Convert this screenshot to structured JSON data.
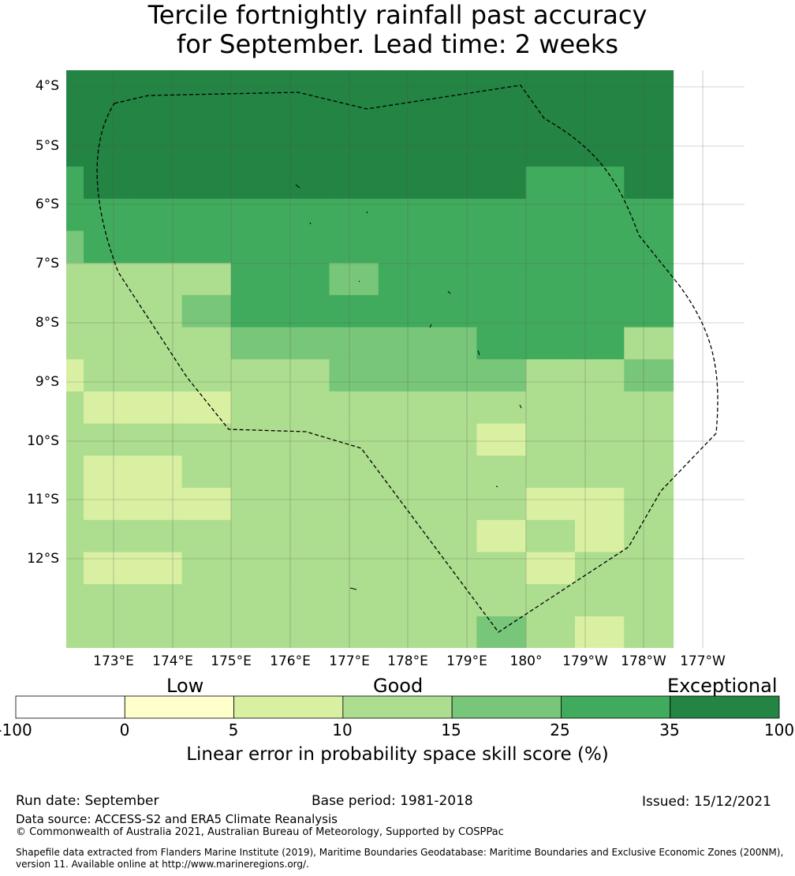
{
  "title_line1": "Tercile fortnightly rainfall past accuracy",
  "title_line2": "for September. Lead time: 2 weeks",
  "map": {
    "lat_labels": [
      "4°S",
      "5°S",
      "6°S",
      "7°S",
      "8°S",
      "9°S",
      "10°S",
      "11°S",
      "12°S"
    ],
    "lon_labels": [
      "173°E",
      "174°E",
      "175°E",
      "176°E",
      "177°E",
      "178°E",
      "179°E",
      "180°",
      "179°W",
      "178°W",
      "177°W"
    ],
    "region_outline": "maritime boundary (dashed)",
    "grid_rows": [
      "6666666666666",
      "6666666666666",
      "6666666666666",
      "5666666666556",
      "5555555555555",
      "4555555555555",
      "3333554555555",
      "3334555555555",
      "3333444445553",
      "2333334444334",
      "3222333333333",
      "3333333332333",
      "3223333333333",
      "3222333333223",
      "3333333332323",
      "3223333333233",
      "3333333333333",
      "3333333334323",
      "3333333334323"
    ]
  },
  "colorbar": {
    "categories": [
      "Low",
      "Good",
      "Exceptional"
    ],
    "ticks": [
      "-100",
      "0",
      "5",
      "10",
      "15",
      "25",
      "35",
      "100"
    ],
    "colors": [
      "#ffffff",
      "#ffffcc",
      "#d9f0a3",
      "#addd8e",
      "#78c679",
      "#41ab5d",
      "#238443"
    ],
    "title": "Linear error in probability space skill score (%)"
  },
  "footer": {
    "run_date": "Run date: September",
    "base_period": "Base period: 1981-2018",
    "issued": "Issued: 15/12/2021",
    "data_source": "Data source: ACCESS-S2 and ERA5 Climate Reanalysis",
    "copyright": "© Commonwealth of Australia 2021, Australian Bureau of Meteorology, Supported by COSPPac",
    "shapefile_line1": "Shapefile data extracted from Flanders Marine Institute (2019), Maritime Boundaries Geodatabase: Maritime Boundaries and Exclusive Economic Zones (200NM),",
    "shapefile_line2": "version 11. Available online at http://www.marineregions.org/."
  }
}
